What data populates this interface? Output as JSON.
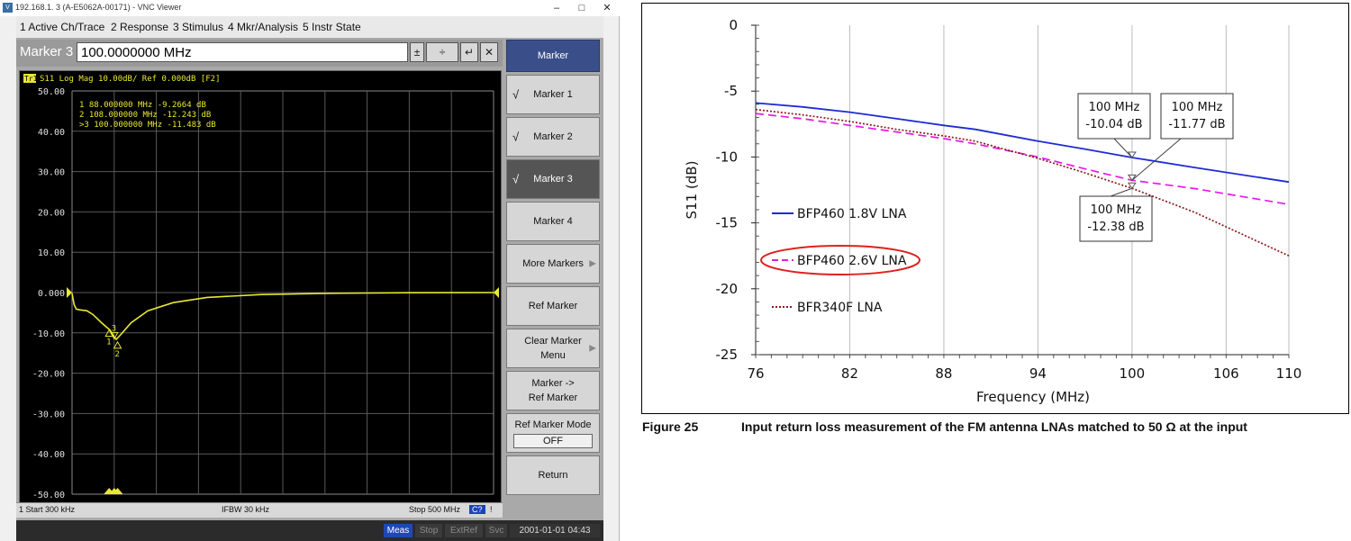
{
  "window": {
    "title": "192.168.1.  3 (A-E5062A-00171) - VNC Viewer",
    "minimize": "–",
    "maximize": "□",
    "close": "✕"
  },
  "menubar": {
    "items": [
      "1 Active Ch/Trace",
      "2 Response",
      "3 Stimulus",
      "4 Mkr/Analysis",
      "5 Instr State"
    ]
  },
  "entry": {
    "label": "Marker 3",
    "value": "100.0000000 MHz"
  },
  "trace": {
    "header": "Tr1  S11  Log Mag 10.00dB/ Ref 0.000dB [F2]",
    "tag": "Tr1",
    "header_rest": "S11  Log Mag 10.00dB/ Ref 0.000dB [F2]",
    "marker_readout": [
      "  1   88.000000 MHz  -9.2664 dB",
      "  2  108.000000 MHz  -12.243  dB",
      ">3  100.000000 MHz  -11.483  dB"
    ],
    "y_ticks": [
      "50.00",
      "40.00",
      "30.00",
      "20.00",
      "10.00",
      "0.000",
      "-10.00",
      "-20.00",
      "-30.00",
      "-40.00",
      "-50.00"
    ],
    "marker_labels": [
      "1",
      "2",
      "3"
    ],
    "trace_color": "#e8e830"
  },
  "statusbar": {
    "start": "1  Start 300 kHz",
    "ifbw": "IFBW 30 kHz",
    "stop": "Stop 500 MHz",
    "flag": "C?",
    "excl": "!"
  },
  "softkeys": {
    "title": "Marker",
    "items": [
      {
        "label": "Marker 1",
        "check": "√"
      },
      {
        "label": "Marker 2",
        "check": "√"
      },
      {
        "label": "Marker 3",
        "check": "√"
      },
      {
        "label": "Marker 4",
        "check": ""
      },
      {
        "label": "More Markers",
        "arrow": "▶"
      },
      {
        "label": "Ref Marker"
      },
      {
        "label": "Clear Marker Menu",
        "line1": "Clear Marker",
        "line2": "Menu",
        "arrow": "▶"
      },
      {
        "label": "Marker -> Ref Marker",
        "line1": "Marker ->",
        "line2": "Ref Marker"
      },
      {
        "label": "Ref Marker Mode",
        "value": "OFF"
      },
      {
        "label": "Return"
      }
    ]
  },
  "bottombar": {
    "meas": "Meas",
    "stop": "Stop",
    "extref": "ExtRef",
    "svc": "Svc",
    "clock": "2001-01-01 04:43"
  },
  "chart_data": {
    "type": "line",
    "title": "",
    "xlabel": "Frequency (MHz)",
    "ylabel": "S11 (dB)",
    "xlim": [
      76,
      110
    ],
    "ylim": [
      -25,
      0
    ],
    "x_ticks": [
      "76",
      "82",
      "88",
      "94",
      "100",
      "106",
      "110"
    ],
    "y_ticks": [
      "0",
      "-5",
      "-10",
      "-15",
      "-20",
      "-25"
    ],
    "grid": "vertical major lines",
    "legend_position": "left-center",
    "series": [
      {
        "name": "BFP460 1.8V LNA",
        "color": "#1f2bd6",
        "style": "solid",
        "x": [
          76,
          79,
          82,
          85,
          88,
          90,
          94,
          97,
          100,
          104,
          110
        ],
        "y": [
          -5.9,
          -6.2,
          -6.6,
          -7.1,
          -7.6,
          -7.9,
          -8.8,
          -9.4,
          -10.04,
          -10.8,
          -11.9
        ]
      },
      {
        "name": "BFP460 2.6V LNA",
        "color": "#e619e6",
        "style": "dashed",
        "x": [
          76,
          79,
          82,
          85,
          88,
          90,
          94,
          97,
          100,
          104,
          110
        ],
        "y": [
          -6.7,
          -7.1,
          -7.6,
          -8.1,
          -8.6,
          -9.0,
          -10.0,
          -10.9,
          -11.77,
          -12.4,
          -13.6
        ]
      },
      {
        "name": "BFR340F LNA",
        "color": "#8b1a1a",
        "style": "dotted",
        "x": [
          76,
          79,
          82,
          85,
          88,
          90,
          94,
          97,
          100,
          104,
          110
        ],
        "y": [
          -6.4,
          -6.8,
          -7.3,
          -7.9,
          -8.4,
          -8.8,
          -10.1,
          -11.2,
          -12.38,
          -14.2,
          -17.5
        ]
      }
    ],
    "annotations": [
      {
        "x": 100,
        "y": -10.04,
        "line1": "100 MHz",
        "line2": "-10.04 dB"
      },
      {
        "x": 100,
        "y": -11.77,
        "line1": "100 MHz",
        "line2": "-11.77 dB"
      },
      {
        "x": 100,
        "y": -12.38,
        "line1": "100 MHz",
        "line2": "-12.38 dB"
      }
    ],
    "highlight": "BFP460 2.6V LNA",
    "highlight_color": "#e02020"
  },
  "caption": {
    "number": "Figure 25",
    "text": "Input return loss measurement of the FM antenna LNAs matched to 50 Ω at the input"
  }
}
